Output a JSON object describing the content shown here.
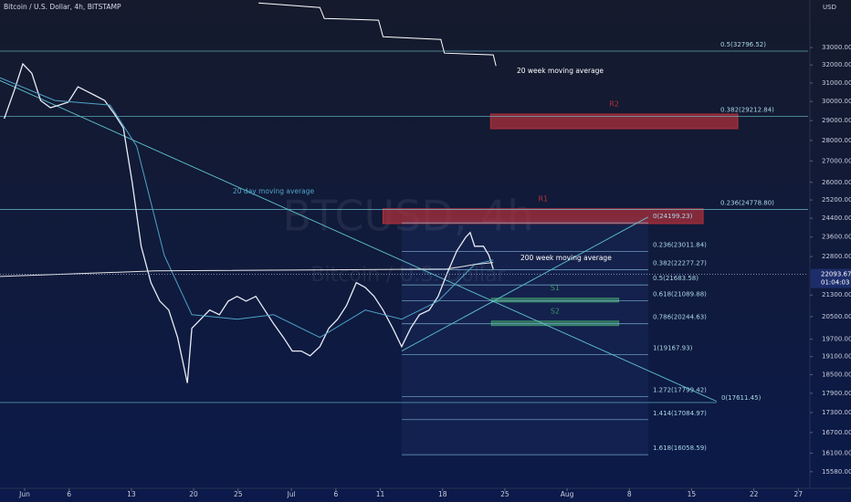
{
  "chart_data": {
    "type": "line",
    "title": "Bitcoin / U.S. Dollar, 4h, BITSTAMP",
    "currency": "USD",
    "watermark": "BTCUSD, 4h",
    "watermark_sub": "Bitcoin / U.S. Dollar",
    "log_scale": true,
    "ylim": [
      35900,
      15130
    ],
    "yticks": [
      {
        "value": 33000,
        "label": "33000.00"
      },
      {
        "value": 32000,
        "label": "32000.00"
      },
      {
        "value": 31000,
        "label": "31000.00"
      },
      {
        "value": 30000,
        "label": "30000.00"
      },
      {
        "value": 29000,
        "label": "29000.00"
      },
      {
        "value": 28000,
        "label": "28000.00"
      },
      {
        "value": 27000,
        "label": "27000.00"
      },
      {
        "value": 26000,
        "label": "26000.00"
      },
      {
        "value": 25200,
        "label": "25200.00"
      },
      {
        "value": 24400,
        "label": "24400.00"
      },
      {
        "value": 23600,
        "label": "23600.00"
      },
      {
        "value": 22800,
        "label": "22800.00"
      },
      {
        "value": 21300,
        "label": "21300.00"
      },
      {
        "value": 20500,
        "label": "20500.00"
      },
      {
        "value": 19700,
        "label": "19700.00"
      },
      {
        "value": 19100,
        "label": "19100.00"
      },
      {
        "value": 18500,
        "label": "18500.00"
      },
      {
        "value": 17900,
        "label": "17900.00"
      },
      {
        "value": 17300,
        "label": "17300.00"
      },
      {
        "value": 16700,
        "label": "16700.00"
      },
      {
        "value": 16100,
        "label": "16100.00"
      },
      {
        "value": 15580,
        "label": "15580.00"
      }
    ],
    "xlim": [
      -2.77,
      88.1
    ],
    "xticks": [
      {
        "value": 0,
        "label": "Jun"
      },
      {
        "value": 5,
        "label": "6"
      },
      {
        "value": 12,
        "label": "13"
      },
      {
        "value": 19,
        "label": "20"
      },
      {
        "value": 24,
        "label": "25"
      },
      {
        "value": 30,
        "label": "Jul"
      },
      {
        "value": 35,
        "label": "6"
      },
      {
        "value": 40,
        "label": "11"
      },
      {
        "value": 47,
        "label": "18"
      },
      {
        "value": 54,
        "label": "25"
      },
      {
        "value": 61,
        "label": "Aug"
      },
      {
        "value": 68,
        "label": "8"
      },
      {
        "value": 75,
        "label": "15"
      },
      {
        "value": 82,
        "label": "22"
      },
      {
        "value": 87,
        "label": "27"
      }
    ],
    "series": [
      {
        "name": "Price",
        "color": "#e8ecf5",
        "x": [
          -2.3,
          -1.2,
          -0.2,
          0.8,
          1.8,
          2.9,
          3.9,
          4.9,
          6.0,
          7.0,
          8.0,
          9.0,
          10.1,
          11.1,
          12.1,
          13.1,
          14.2,
          15.2,
          16.2,
          17.2,
          18.3,
          18.8,
          19.8,
          20.8,
          21.9,
          22.9,
          23.9,
          24.9,
          26.0,
          27.0,
          28.0,
          29.1,
          30.1,
          31.1,
          32.1,
          33.2,
          34.2,
          35.2,
          36.2,
          37.3,
          38.3,
          39.3,
          40.3,
          41.4,
          42.4,
          43.4,
          44.4,
          45.5,
          46.5,
          47.5,
          48.6,
          49.6,
          50.1,
          50.6,
          51.6,
          52.2,
          52.7
        ],
        "values": [
          29100,
          30540,
          32060,
          31540,
          30050,
          29670,
          29810,
          29960,
          30790,
          30540,
          30300,
          30050,
          29340,
          28630,
          25990,
          23220,
          21770,
          21070,
          20740,
          19760,
          18230,
          20080,
          20410,
          20740,
          20570,
          21070,
          21250,
          21070,
          21250,
          20740,
          20240,
          19760,
          19290,
          19290,
          19130,
          19440,
          20080,
          20410,
          20910,
          21770,
          21590,
          21250,
          20740,
          20080,
          19440,
          20080,
          20570,
          20740,
          21250,
          22120,
          23030,
          23590,
          23790,
          23220,
          23220,
          22850,
          22300
        ]
      },
      {
        "name": "20 day moving average",
        "color": "#4fa3c7",
        "x": [
          -2.8,
          3.4,
          9.6,
          12.6,
          15.7,
          18.8,
          23.9,
          28.0,
          33.2,
          38.3,
          42.4,
          46.5,
          50.6,
          52.7
        ],
        "values": [
          31290,
          30050,
          29810,
          27720,
          22850,
          20570,
          20410,
          20570,
          19760,
          20740,
          20410,
          21070,
          22480,
          22660
        ]
      },
      {
        "name": "200 week moving average",
        "color": "#e6e6e6",
        "x": [
          -2.8,
          14.7,
          47.5,
          50.6,
          52.7
        ],
        "values": [
          22010,
          22230,
          22300,
          22480,
          22560
        ]
      },
      {
        "name": "20 week moving average",
        "color": "#ffffff",
        "x": [
          26.3,
          33.2,
          33.7,
          39.8,
          40.3,
          46.8,
          47.2,
          52.7,
          53.0
        ],
        "values": [
          35710,
          35430,
          34750,
          34640,
          33640,
          33480,
          32680,
          32580,
          31950
        ]
      }
    ],
    "levels": [
      {
        "label": "0.5(32796.52)",
        "value": 32796.52,
        "kind": "full"
      },
      {
        "label": "0.382(29212.84)",
        "value": 29212.84,
        "kind": "full"
      },
      {
        "label": "0.236(24778.80)",
        "value": 24778.8,
        "kind": "full"
      },
      {
        "label": "0(24199.23)",
        "value": 24199.23,
        "kind": "fib"
      },
      {
        "label": "0.236(23011.84)",
        "value": 23011.84,
        "kind": "fib"
      },
      {
        "label": "0.382(22277.27)",
        "value": 22277.27,
        "kind": "fib"
      },
      {
        "label": "0.5(21683.58)",
        "value": 21683.58,
        "kind": "fib"
      },
      {
        "label": "0.618(21089.88)",
        "value": 21089.88,
        "kind": "fib"
      },
      {
        "label": "0.786(20244.63)",
        "value": 20244.63,
        "kind": "fib"
      },
      {
        "label": "1(19167.93)",
        "value": 19167.93,
        "kind": "fib"
      },
      {
        "label": "1.272(17799.42)",
        "value": 17799.42,
        "kind": "fib"
      },
      {
        "label": "1.414(17084.97)",
        "value": 17084.97,
        "kind": "fib"
      },
      {
        "label": "1.618(16058.59)",
        "value": 16058.59,
        "kind": "fib"
      },
      {
        "label": "0(17611.45)",
        "value": 17611.45,
        "kind": "trend"
      }
    ],
    "zones": [
      {
        "label": "R2",
        "range": [
          29340,
          28590
        ],
        "x_range": [
          52.4,
          80.2
        ],
        "color": "#b3303a"
      },
      {
        "label": "R1",
        "range": [
          24810,
          24170
        ],
        "x_range": [
          40.3,
          76.3
        ],
        "color": "#b3303a"
      },
      {
        "label": "S1",
        "range": [
          21180,
          21040
        ],
        "x_range": [
          52.5,
          66.8
        ],
        "color": "#3a8f6a"
      },
      {
        "label": "S2",
        "range": [
          20340,
          20180
        ],
        "x_range": [
          52.5,
          66.8
        ],
        "color": "#3a8f6a"
      }
    ],
    "trendlines": [
      {
        "x": [
          -2.8,
          77.8
        ],
        "values": [
          31140,
          17650
        ]
      },
      {
        "x": [
          42.4,
          70.1
        ],
        "values": [
          19290,
          24450
        ]
      }
    ],
    "last_price": {
      "value": 22093.67,
      "label": "22093.67"
    },
    "countdown": "01:04:03"
  }
}
